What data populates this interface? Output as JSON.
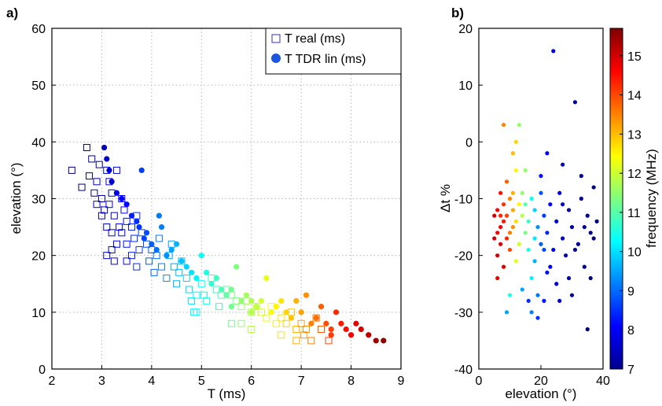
{
  "panels": {
    "a": "a)",
    "b": "b)"
  },
  "chart_data": [
    {
      "id": "a",
      "type": "scatter",
      "xlabel": "T (ms)",
      "ylabel": "elevation (°)",
      "xlim": [
        2,
        9
      ],
      "ylim": [
        0,
        60
      ],
      "xticks": [
        "2",
        "3",
        "4",
        "5",
        "6",
        "7",
        "8",
        "9"
      ],
      "yticks": [
        "0",
        "10",
        "20",
        "30",
        "40",
        "50",
        "60"
      ],
      "grid": true,
      "legend_position": "top-right",
      "series": [
        {
          "name": "T real (ms)",
          "marker": "open-square",
          "color": "#3344bb",
          "points": [
            [
              2.4,
              35
            ],
            [
              2.6,
              32
            ],
            [
              2.7,
              39
            ],
            [
              2.75,
              34
            ],
            [
              2.8,
              37
            ],
            [
              2.85,
              31
            ],
            [
              2.9,
              33
            ],
            [
              2.95,
              36
            ],
            [
              3.0,
              30
            ],
            [
              3.05,
              28
            ],
            [
              3.1,
              35
            ],
            [
              3.15,
              33
            ],
            [
              3.2,
              31
            ],
            [
              3.25,
              27
            ],
            [
              3.3,
              35
            ],
            [
              2.9,
              29
            ],
            [
              3.0,
              27
            ],
            [
              3.1,
              25
            ],
            [
              3.15,
              29
            ],
            [
              3.2,
              24
            ],
            [
              3.3,
              22
            ],
            [
              3.35,
              25
            ],
            [
              3.4,
              30
            ],
            [
              3.45,
              28
            ],
            [
              3.5,
              26
            ],
            [
              3.1,
              20
            ],
            [
              3.2,
              21
            ],
            [
              3.25,
              19
            ],
            [
              3.4,
              24
            ],
            [
              3.5,
              22
            ],
            [
              3.6,
              25
            ],
            [
              3.65,
              23
            ],
            [
              3.7,
              27
            ],
            [
              3.5,
              19
            ],
            [
              3.6,
              20
            ],
            [
              3.7,
              18
            ],
            [
              3.75,
              21
            ],
            [
              3.8,
              24
            ],
            [
              3.9,
              22
            ],
            [
              3.95,
              19
            ],
            [
              4.0,
              21
            ],
            [
              4.05,
              17
            ],
            [
              4.1,
              20
            ],
            [
              4.15,
              23
            ],
            [
              4.2,
              18
            ],
            [
              4.3,
              16
            ],
            [
              4.35,
              20
            ],
            [
              4.4,
              22
            ],
            [
              4.45,
              18
            ],
            [
              4.5,
              15
            ],
            [
              4.55,
              17
            ],
            [
              4.6,
              19
            ],
            [
              4.7,
              16
            ],
            [
              4.75,
              14
            ],
            [
              4.8,
              12
            ],
            [
              4.85,
              10
            ],
            [
              4.9,
              13
            ],
            [
              5.0,
              15
            ],
            [
              5.05,
              13
            ],
            [
              5.1,
              12
            ],
            [
              5.2,
              16
            ],
            [
              5.3,
              14
            ],
            [
              5.35,
              11
            ],
            [
              5.4,
              13
            ],
            [
              5.5,
              14
            ],
            [
              5.6,
              13
            ],
            [
              5.7,
              12
            ],
            [
              5.8,
              11
            ],
            [
              5.9,
              12
            ],
            [
              6.0,
              10
            ],
            [
              6.1,
              11
            ],
            [
              6.2,
              10
            ],
            [
              6.3,
              9
            ],
            [
              6.4,
              11
            ],
            [
              6.5,
              8
            ],
            [
              6.6,
              9
            ],
            [
              6.7,
              8
            ],
            [
              6.8,
              10
            ],
            [
              6.9,
              7
            ],
            [
              7.0,
              8
            ],
            [
              7.05,
              6
            ],
            [
              7.1,
              7
            ],
            [
              7.2,
              5
            ],
            [
              7.3,
              9
            ],
            [
              7.4,
              7
            ],
            [
              7.55,
              5
            ],
            [
              5.8,
              8
            ],
            [
              6.0,
              7
            ],
            [
              6.6,
              6
            ],
            [
              6.9,
              5
            ],
            [
              4.9,
              10
            ],
            [
              5.6,
              8
            ]
          ]
        },
        {
          "name": "T TDR lin (ms)",
          "marker": "filled-circle",
          "color": "#1a56e0",
          "points": [
            [
              3.05,
              39
            ],
            [
              3.1,
              37
            ],
            [
              3.15,
              35
            ],
            [
              3.2,
              33
            ],
            [
              3.3,
              31
            ],
            [
              3.4,
              30
            ],
            [
              3.5,
              29
            ],
            [
              3.6,
              27
            ],
            [
              3.7,
              26
            ],
            [
              3.75,
              25
            ],
            [
              3.8,
              35
            ],
            [
              3.85,
              23
            ],
            [
              3.9,
              24
            ],
            [
              4.0,
              22
            ],
            [
              4.1,
              21
            ],
            [
              4.15,
              27
            ],
            [
              4.2,
              25
            ],
            [
              4.3,
              20
            ],
            [
              4.4,
              21
            ],
            [
              4.5,
              22
            ],
            [
              4.6,
              19
            ],
            [
              4.7,
              18
            ],
            [
              4.8,
              17
            ],
            [
              4.9,
              16
            ],
            [
              5.0,
              20
            ],
            [
              5.1,
              17
            ],
            [
              5.2,
              15
            ],
            [
              5.3,
              16
            ],
            [
              5.4,
              14
            ],
            [
              5.5,
              13
            ],
            [
              5.6,
              14
            ],
            [
              5.7,
              18
            ],
            [
              5.8,
              12
            ],
            [
              5.9,
              13
            ],
            [
              6.0,
              12
            ],
            [
              6.1,
              11
            ],
            [
              6.2,
              12
            ],
            [
              6.3,
              16
            ],
            [
              6.4,
              10
            ],
            [
              6.5,
              11
            ],
            [
              6.6,
              12
            ],
            [
              6.7,
              10
            ],
            [
              6.8,
              9
            ],
            [
              6.9,
              12
            ],
            [
              7.0,
              10
            ],
            [
              7.1,
              13
            ],
            [
              7.2,
              8
            ],
            [
              7.3,
              9
            ],
            [
              7.4,
              11
            ],
            [
              7.5,
              8
            ],
            [
              7.6,
              7
            ],
            [
              7.7,
              10
            ],
            [
              7.8,
              8
            ],
            [
              7.9,
              7
            ],
            [
              8.0,
              6
            ],
            [
              8.1,
              8
            ],
            [
              8.2,
              7
            ],
            [
              8.35,
              6
            ],
            [
              8.5,
              5
            ],
            [
              8.65,
              5
            ],
            [
              7.6,
              6
            ],
            [
              6.0,
              10
            ],
            [
              5.6,
              11
            ]
          ],
          "color_by": "frequency"
        }
      ]
    },
    {
      "id": "b",
      "type": "scatter",
      "xlabel": "elevation (°)",
      "ylabel": "Δt %",
      "xlim": [
        0,
        40
      ],
      "ylim": [
        -40,
        20
      ],
      "xticks": [
        "0",
        "20",
        "40"
      ],
      "yticks": [
        "-40",
        "-30",
        "-20",
        "-10",
        "0",
        "10",
        "20"
      ],
      "grid": false,
      "colorbar": {
        "label": "frequency (MHz)",
        "range": [
          7,
          15.7
        ],
        "ticks": [
          "7",
          "8",
          "9",
          "10",
          "11",
          "12",
          "13",
          "14",
          "15"
        ],
        "colormap": "jet"
      },
      "series": [
        {
          "name": "",
          "marker": "filled-circle",
          "color_by": "frequency",
          "points": [
            [
              5,
              -13,
              15
            ],
            [
              5,
              -17,
              15
            ],
            [
              6,
              -12,
              14.6
            ],
            [
              6,
              -20,
              15
            ],
            [
              6,
              -24,
              14.8
            ],
            [
              7,
              -9,
              14.5
            ],
            [
              7,
              -15,
              14.7
            ],
            [
              7,
              -18,
              14.9
            ],
            [
              8,
              -11,
              14.2
            ],
            [
              8,
              -14,
              14.4
            ],
            [
              8,
              -22,
              14.9
            ],
            [
              9,
              -7,
              13.8
            ],
            [
              9,
              -13,
              14.1
            ],
            [
              9,
              -17,
              14.3
            ],
            [
              10,
              -10,
              13.5
            ],
            [
              10,
              -16,
              13.6
            ],
            [
              10,
              -19,
              14.0
            ],
            [
              11,
              -2,
              13.0
            ],
            [
              11,
              -12,
              13.2
            ],
            [
              11,
              -15,
              13.4
            ],
            [
              12,
              0,
              12.8
            ],
            [
              12,
              -14,
              12.7
            ],
            [
              12,
              -21,
              12.2
            ],
            [
              13,
              -11,
              12.5
            ],
            [
              13,
              -18,
              12.0
            ],
            [
              14,
              -9,
              11.5
            ],
            [
              14,
              -13,
              11.8
            ],
            [
              15,
              -16,
              11.3
            ],
            [
              15,
              -11,
              11.0
            ],
            [
              16,
              -14,
              10.8
            ],
            [
              16,
              -19,
              10.5
            ],
            [
              17,
              -10,
              10.4
            ],
            [
              17,
              -24,
              10.2
            ],
            [
              18,
              -12,
              9.9
            ],
            [
              18,
              -21,
              9.6
            ],
            [
              19,
              -15,
              9.3
            ],
            [
              19,
              -27,
              9.1
            ],
            [
              20,
              -18,
              8.9
            ],
            [
              20,
              -9,
              8.8
            ],
            [
              21,
              -13,
              8.6
            ],
            [
              21,
              -28,
              8.3
            ],
            [
              22,
              -16,
              8.4
            ],
            [
              22,
              -23,
              8.2
            ],
            [
              23,
              -11,
              8.1
            ],
            [
              24,
              16,
              8.0
            ],
            [
              24,
              -19,
              7.9
            ],
            [
              25,
              -14,
              7.8
            ],
            [
              25,
              -25,
              7.7
            ],
            [
              26,
              -9,
              7.8
            ],
            [
              27,
              -17,
              7.6
            ],
            [
              27,
              -4,
              7.5
            ],
            [
              28,
              -20,
              7.5
            ],
            [
              29,
              -12,
              7.4
            ],
            [
              30,
              -15,
              7.4
            ],
            [
              31,
              7,
              7.3
            ],
            [
              32,
              -18,
              7.3
            ],
            [
              33,
              -10,
              7.2
            ],
            [
              34,
              -22,
              7.2
            ],
            [
              35,
              -13,
              7.1
            ],
            [
              36,
              -16,
              7.1
            ],
            [
              37,
              -8,
              7.1
            ],
            [
              38,
              -14,
              7.0
            ],
            [
              35,
              -33,
              7.0
            ],
            [
              8,
              3,
              13.5
            ],
            [
              9,
              -30,
              9.5
            ],
            [
              10,
              -27,
              10.5
            ],
            [
              13,
              3,
              11.5
            ],
            [
              16,
              -28,
              8.5
            ],
            [
              14,
              -26,
              9.5
            ],
            [
              12,
              -5,
              12.5
            ],
            [
              17,
              -30,
              9.2
            ],
            [
              20,
              -6,
              8.2
            ],
            [
              22,
              -2,
              8.1
            ],
            [
              19,
              -31,
              8.5
            ],
            [
              26,
              -28,
              7.6
            ],
            [
              30,
              -27,
              7.3
            ],
            [
              33,
              -6,
              7.2
            ],
            [
              36,
              -24,
              7.1
            ],
            [
              15,
              -5,
              11.5
            ],
            [
              11,
              -9,
              13.1
            ],
            [
              7,
              -13,
              14.3
            ],
            [
              6,
              -16,
              14.6
            ],
            [
              18,
              -17,
              10.1
            ],
            [
              21,
              -19,
              8.7
            ],
            [
              23,
              -22,
              8.0
            ],
            [
              27,
              -11,
              7.6
            ],
            [
              29,
              -24,
              7.4
            ],
            [
              31,
              -19,
              7.3
            ],
            [
              34,
              -15,
              7.2
            ],
            [
              37,
              -17,
              7.0
            ]
          ]
        }
      ]
    }
  ]
}
